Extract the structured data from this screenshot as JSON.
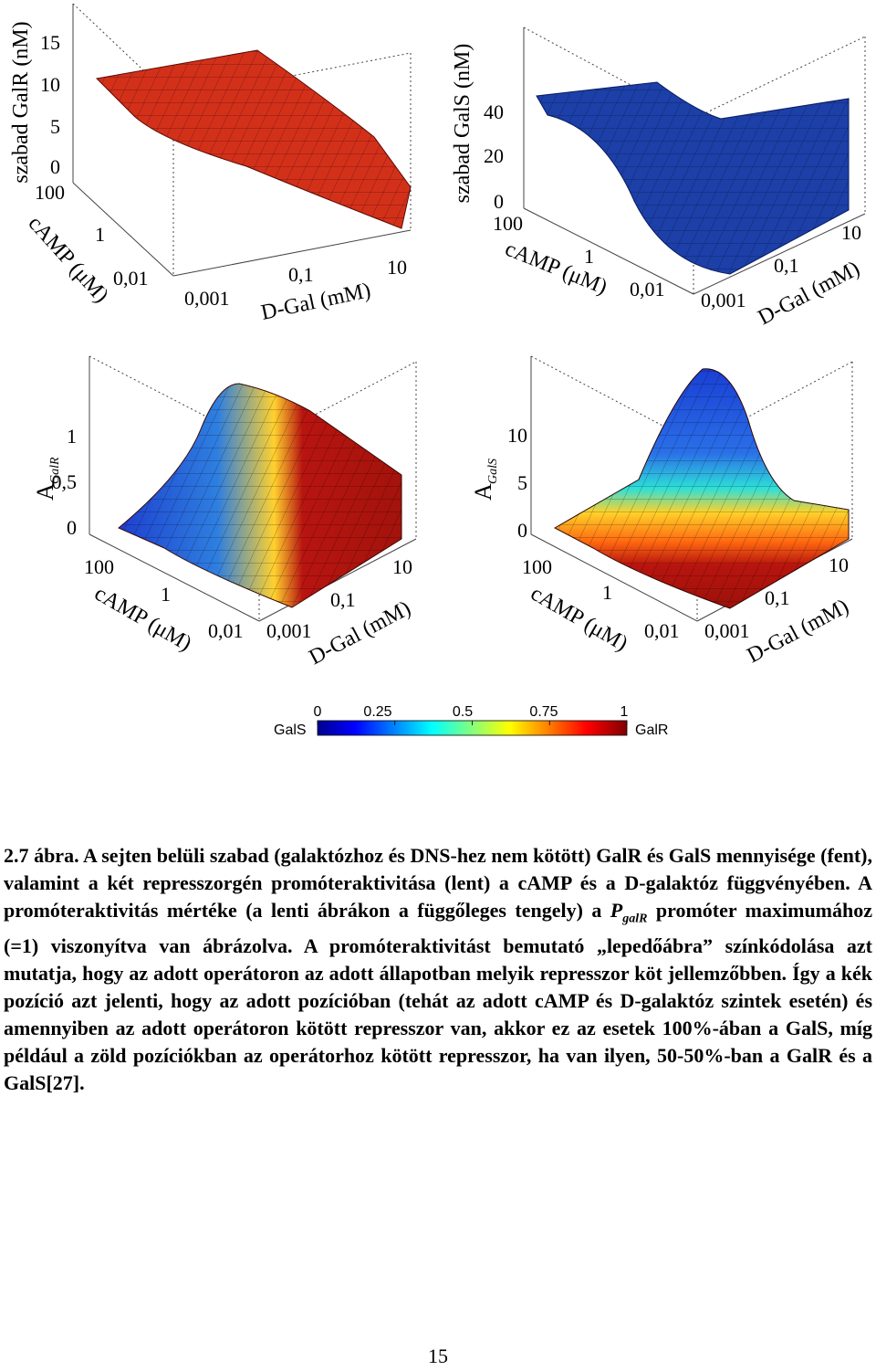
{
  "panels": {
    "top_left": {
      "z_label": "szabad GalR (nM)",
      "z_ticks": [
        "15",
        "10",
        "5",
        "0"
      ],
      "camp_label": "cAMP (μM)",
      "camp_ticks": [
        "100",
        "1",
        "0,01"
      ],
      "dgal_label": "D-Gal (mM)",
      "dgal_ticks": [
        "0,001",
        "0,1",
        "10"
      ],
      "surface_color": "#d22a14"
    },
    "top_right": {
      "z_label": "szabad GalS (nM)",
      "z_ticks": [
        "40",
        "20",
        "0"
      ],
      "camp_label": "cAMP (μM)",
      "camp_ticks": [
        "100",
        "1",
        "0,01"
      ],
      "dgal_label": "D-Gal (mM)",
      "dgal_ticks": [
        "0,001",
        "0,1",
        "10"
      ],
      "surface_color": "#1c3fa8"
    },
    "bottom_left": {
      "z_label": "A",
      "z_label_sub": "GalR",
      "z_ticks": [
        "1",
        "0,5",
        "0"
      ],
      "camp_label": "cAMP (μM)",
      "camp_ticks": [
        "100",
        "1",
        "0,01"
      ],
      "dgal_label": "D-Gal (mM)",
      "dgal_ticks": [
        "0,001",
        "0,1",
        "10"
      ]
    },
    "bottom_right": {
      "z_label": "A",
      "z_label_sub": "GalS",
      "z_ticks": [
        "10",
        "5",
        "0"
      ],
      "camp_label": "cAMP (μM)",
      "camp_ticks": [
        "100",
        "1",
        "0,01"
      ],
      "dgal_label": "D-Gal (mM)",
      "dgal_ticks": [
        "0,001",
        "0,1",
        "10"
      ]
    }
  },
  "colorbar": {
    "left_label": "GalS",
    "right_label": "GalR",
    "ticks": [
      "0",
      "0.25",
      "0.5",
      "0.75",
      "1"
    ],
    "colors": [
      "#00008f",
      "#0000ff",
      "#00ffff",
      "#ffff00",
      "#ff0000",
      "#800000"
    ]
  },
  "caption": {
    "line1": "2.7 ábra. A sejten belüli szabad (galaktózhoz és DNS-hez nem kötött) GalR és GalS mennyisége (fent), valamint a két represszorgén promóteraktivitása (lent) a cAMP és a D-galaktóz függvényében. A promóteraktivitás mértéke (a lenti ábrákon a függőleges tengely) a ",
    "p_symbol": "P",
    "p_sub": "galR",
    "line2": " promóter maximumához (=1) viszonyítva van ábrázolva. A promóteraktivitást bemutató „lepedőábra” színkódolása azt mutatja, hogy az adott operátoron az adott állapotban melyik represszor köt jellemzőbben. Így a kék pozíció azt jelenti, hogy az adott pozícióban (tehát az adott cAMP és D-galaktóz szintek esetén) és amennyiben az adott operátoron kötött represszor van, akkor ez az esetek 100%-ában a GalS, míg például a zöld pozíciókban az operátorhoz kötött represszor, ha van ilyen, 50-50%-ban a GalR és a GalS[27]."
  },
  "page_number": "15"
}
